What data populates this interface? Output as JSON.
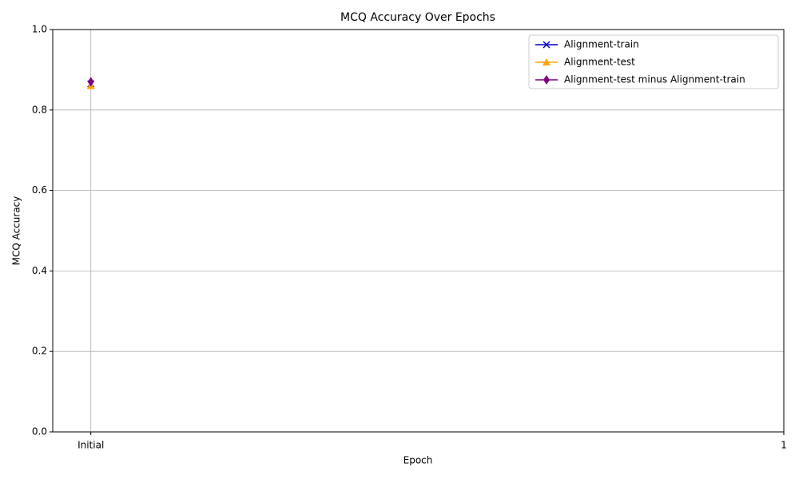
{
  "chart_data": {
    "type": "line",
    "title": "MCQ Accuracy Over Epochs",
    "xlabel": "Epoch",
    "ylabel": "MCQ Accuracy",
    "x": [
      0,
      1
    ],
    "xlim": [
      -0.055,
      1
    ],
    "xticks": [
      {
        "value": 0,
        "label": "Initial"
      },
      1
    ],
    "ylim": [
      0,
      1
    ],
    "yticks": [
      {
        "value": 0,
        "label": "0.0"
      },
      0.2,
      0.4,
      0.6,
      0.8,
      {
        "value": 1,
        "label": "1.0"
      }
    ],
    "grid": true,
    "legend": "upper right",
    "series": [
      {
        "name": "Alignment-train",
        "color": "#0000cd",
        "marker": "x",
        "values": [
          0.865,
          null
        ]
      },
      {
        "name": "Alignment-test",
        "color": "#ffa500",
        "marker": "^",
        "values": [
          0.86,
          null
        ]
      },
      {
        "name": "Alignment-test minus Alignment-train",
        "color": "#800080",
        "marker": "d",
        "values": [
          0.87,
          null
        ]
      }
    ]
  }
}
